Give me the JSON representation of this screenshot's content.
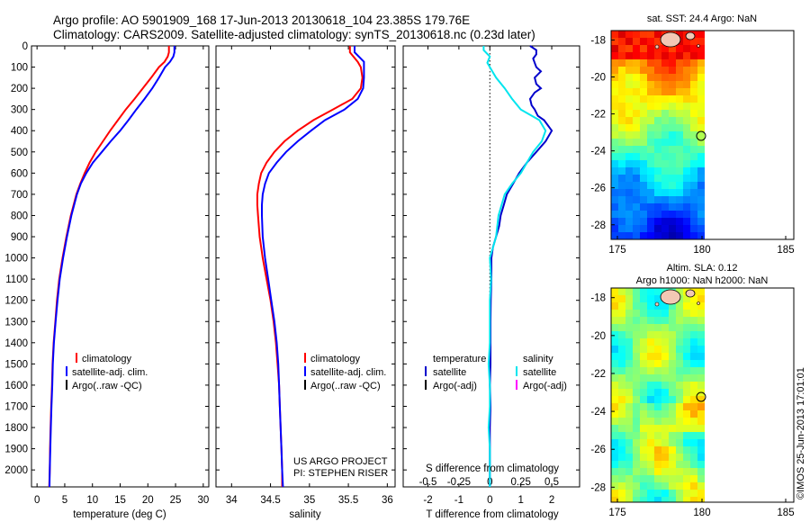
{
  "header": {
    "line1": "Argo profile: AO 5901909_168 17-Jun-2013 20130618_104 23.385S 179.76E",
    "line2": "Climatology: CARS2009. Satellite-adjusted climatology: synTS_20130618.nc (0.23d later)"
  },
  "colors": {
    "climatology": "#ff0000",
    "satellite": "#0000ff",
    "argo_temperature": "#000000",
    "temp_diff": "#0000cc",
    "sal_diff": "#00e5ee",
    "argo_salinity_diff": "#ff00ff",
    "land": "#f2c8b4"
  },
  "chart_data": [
    {
      "type": "line",
      "panel": "temperature",
      "xlabel": "temperature (deg C)",
      "xlim": [
        -1,
        31
      ],
      "xticks": [
        0,
        5,
        10,
        15,
        20,
        25,
        30
      ],
      "ylim": [
        2080,
        0
      ],
      "yticks": [
        0,
        100,
        200,
        300,
        400,
        500,
        600,
        700,
        800,
        900,
        1000,
        1100,
        1200,
        1300,
        1400,
        1500,
        1600,
        1700,
        1800,
        1900,
        2000
      ],
      "legend": [
        "climatology",
        "satellite-adj. clim.",
        "Argo(..raw -QC)"
      ],
      "series": [
        {
          "name": "climatology",
          "depth": [
            0,
            30,
            50,
            75,
            100,
            150,
            200,
            250,
            300,
            350,
            400,
            450,
            500,
            550,
            600,
            650,
            700,
            800,
            900,
            1000,
            1100,
            1200,
            1300,
            1400,
            1500,
            1600,
            1700,
            1800,
            1900,
            2000,
            2080
          ],
          "values": [
            23.8,
            23.8,
            23.6,
            23.0,
            22.0,
            20.6,
            19.1,
            17.6,
            16.0,
            14.6,
            13.2,
            11.9,
            10.6,
            9.5,
            8.6,
            7.8,
            7.1,
            6.1,
            5.3,
            4.6,
            4.0,
            3.6,
            3.3,
            3.0,
            2.8,
            2.7,
            2.55,
            2.45,
            2.35,
            2.3,
            2.2
          ]
        },
        {
          "name": "satellite-adj. clim.",
          "depth": [
            0,
            30,
            50,
            75,
            100,
            150,
            200,
            250,
            300,
            350,
            400,
            450,
            500,
            550,
            600,
            650,
            700,
            800,
            900,
            1000,
            1100,
            1200,
            1300,
            1400,
            1500,
            1600,
            1700,
            1800,
            1900,
            2000,
            2080
          ],
          "values": [
            24.8,
            24.8,
            24.6,
            24.0,
            23.1,
            22.0,
            20.8,
            19.4,
            17.9,
            16.5,
            15.0,
            13.3,
            11.7,
            10.1,
            8.9,
            7.9,
            7.2,
            6.2,
            5.4,
            4.7,
            4.1,
            3.7,
            3.35,
            3.05,
            2.85,
            2.75,
            2.6,
            2.5,
            2.4,
            2.3,
            2.25
          ]
        }
      ]
    },
    {
      "type": "line",
      "panel": "salinity",
      "xlabel": "salinity",
      "xlim": [
        33.8,
        36.1
      ],
      "xticks": [
        34,
        34.5,
        35,
        35.5,
        36
      ],
      "ylim": [
        2080,
        0
      ],
      "legend": [
        "climatology",
        "satellite-adj. clim.",
        "Argo(..raw -QC)"
      ],
      "annotation": [
        "US ARGO PROJECT",
        "PI: STEPHEN RISER"
      ],
      "series": [
        {
          "name": "climatology",
          "depth": [
            0,
            30,
            75,
            100,
            150,
            200,
            250,
            300,
            350,
            400,
            450,
            500,
            550,
            600,
            650,
            700,
            750,
            800,
            900,
            1000,
            1100,
            1200,
            1300,
            1400,
            1500,
            1600,
            1700,
            1800,
            1900,
            2000,
            2080
          ],
          "values": [
            35.52,
            35.52,
            35.62,
            35.66,
            35.68,
            35.66,
            35.55,
            35.3,
            35.05,
            34.85,
            34.68,
            34.55,
            34.45,
            34.38,
            34.35,
            34.33,
            34.33,
            34.34,
            34.36,
            34.4,
            34.45,
            34.5,
            34.54,
            34.57,
            34.59,
            34.61,
            34.62,
            34.63,
            34.64,
            34.65,
            34.65
          ]
        },
        {
          "name": "satellite-adj. clim.",
          "depth": [
            0,
            30,
            75,
            100,
            150,
            200,
            250,
            300,
            350,
            400,
            450,
            500,
            550,
            600,
            650,
            700,
            750,
            800,
            900,
            1000,
            1100,
            1200,
            1300,
            1400,
            1500,
            1600,
            1700,
            1800,
            1900,
            2000,
            2080
          ],
          "values": [
            35.58,
            35.58,
            35.7,
            35.7,
            35.7,
            35.69,
            35.62,
            35.45,
            35.2,
            35.02,
            34.85,
            34.7,
            34.58,
            34.48,
            34.43,
            34.4,
            34.39,
            34.39,
            34.4,
            34.43,
            34.47,
            34.51,
            34.55,
            34.58,
            34.6,
            34.61,
            34.62,
            34.63,
            34.64,
            34.65,
            34.66
          ]
        }
      ]
    },
    {
      "type": "line",
      "panel": "difference",
      "xlabel": "T difference from climatology",
      "xlabel_top": "S difference from climatology",
      "xlim": [
        -2.8,
        2.9
      ],
      "xticks": [
        -2,
        -1,
        0,
        1,
        2
      ],
      "xticks_top": [
        -0.5,
        -0.25,
        0,
        0.25,
        0.5
      ],
      "ylim": [
        2080,
        0
      ],
      "legend_temperature": [
        "temperature",
        "satellite",
        "Argo(-adj)"
      ],
      "legend_salinity": [
        "salinity",
        "satellite",
        "Argo(-adj)"
      ],
      "series": [
        {
          "name": "temperature satellite",
          "depth": [
            0,
            20,
            40,
            60,
            80,
            100,
            120,
            150,
            180,
            200,
            220,
            250,
            280,
            300,
            330,
            350,
            400,
            450,
            500,
            550,
            600,
            650,
            700,
            750,
            800,
            850,
            900,
            950,
            1000,
            1100,
            1200,
            1300,
            1400,
            1500,
            1600,
            1700,
            1800,
            1900,
            2000,
            2080
          ],
          "values": [
            1.3,
            1.5,
            1.5,
            1.4,
            1.45,
            1.5,
            1.65,
            1.45,
            1.5,
            1.65,
            1.45,
            1.3,
            1.35,
            1.45,
            1.55,
            1.75,
            2.0,
            1.8,
            1.5,
            1.2,
            0.95,
            0.75,
            0.55,
            0.45,
            0.35,
            0.3,
            0.2,
            0.1,
            0.05,
            0.05,
            0.03,
            0.02,
            0.02,
            0.02,
            0.0,
            0.02,
            0.0,
            0.0,
            0.0,
            0.0
          ]
        },
        {
          "name": "salinity satellite",
          "depth": [
            0,
            20,
            50,
            80,
            100,
            120,
            150,
            200,
            250,
            300,
            350,
            400,
            450,
            500,
            550,
            600,
            650,
            700,
            800,
            900,
            1000,
            1100,
            1200,
            1300,
            1400,
            1500,
            1600,
            1700,
            1800,
            1900,
            2000,
            2080
          ],
          "values": [
            -0.05,
            -0.05,
            0.0,
            -0.02,
            0.0,
            0.02,
            0.05,
            0.12,
            0.18,
            0.25,
            0.4,
            0.45,
            0.42,
            0.35,
            0.3,
            0.25,
            0.18,
            0.12,
            0.07,
            0.05,
            0.0,
            0.01,
            0.0,
            0.0,
            0.0,
            -0.01,
            0.0,
            0.0,
            -0.01,
            0.0,
            0.0,
            0.0
          ]
        }
      ]
    }
  ],
  "maps": {
    "sst": {
      "title": "sat. SST: 24.4  Argo: NaN",
      "xticks": [
        "175",
        "180",
        "185"
      ],
      "yticks": [
        "-18",
        "-20",
        "-22",
        "-24",
        "-26",
        "-28"
      ]
    },
    "sla": {
      "title_line1": "Altim. SLA: 0.12",
      "title_line2": "Argo h1000: NaN h2000: NaN",
      "xticks": [
        "175",
        "180",
        "185"
      ],
      "yticks": [
        "-18",
        "-20",
        "-22",
        "-24",
        "-26",
        "-28"
      ]
    },
    "float_position": {
      "lon": 179.76,
      "lat": -23.385
    }
  },
  "footer": {
    "timestamp": "©IMOS 25-Jun-2013 17:01:01"
  }
}
